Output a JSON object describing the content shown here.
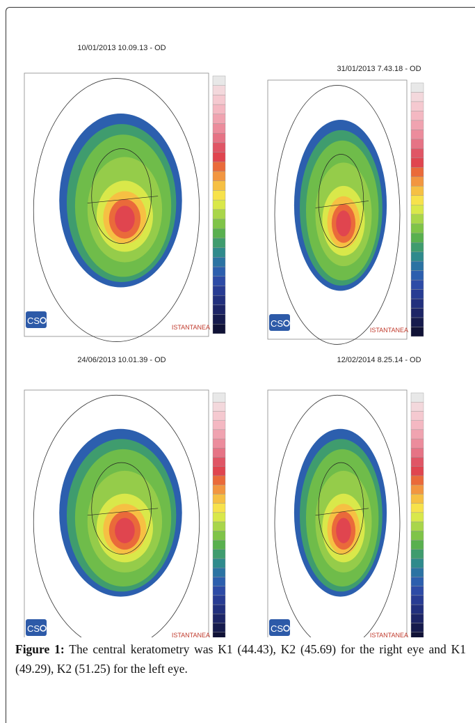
{
  "panels": [
    {
      "title": "10/01/2013 10.09.13 - OD",
      "logo": "CS",
      "label": "ISTANTANEA"
    },
    {
      "title": "31/01/2013 7.43.18 - OD",
      "logo": "CS",
      "label": "ISTANTANEA"
    },
    {
      "title": "24/06/2013 10.01.39 - OD",
      "logo": "CS",
      "label": "ISTANTANEA"
    },
    {
      "title": "12/02/2014 8.25.14 - OD",
      "logo": "CS",
      "label": "ISTANTANEA"
    }
  ],
  "caption": {
    "label": "Figure 1:",
    "text": "The central keratometry was K1 (44.43), K2 (45.69) for the right eye and K1 (49.29), K2 (51.25) for the left eye."
  }
}
